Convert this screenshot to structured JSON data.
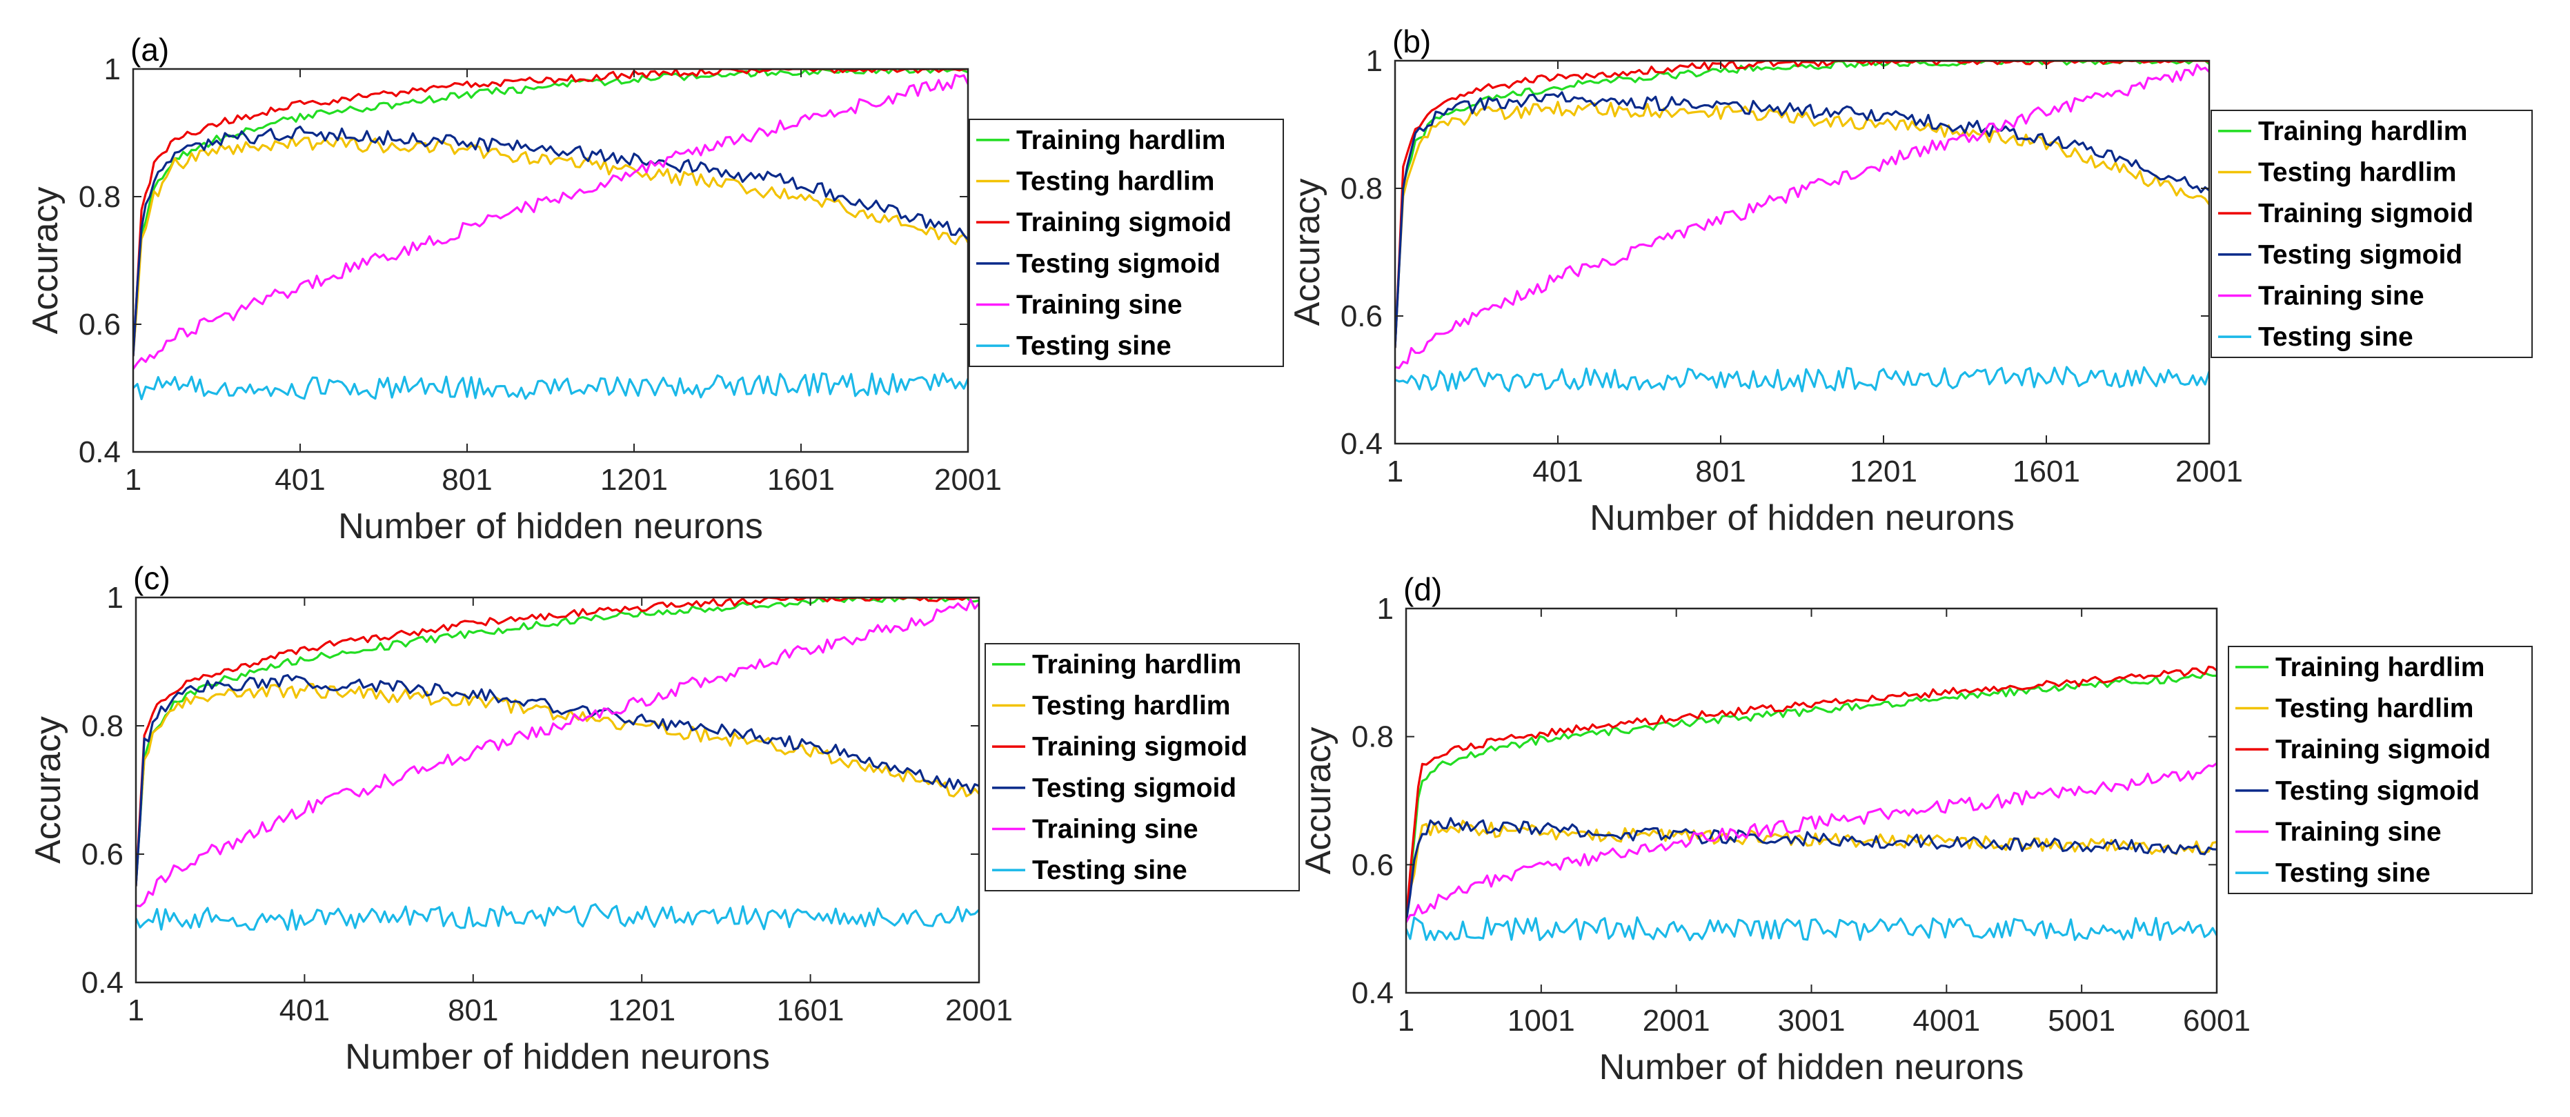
{
  "chart_data": [
    {
      "type": "line",
      "panel_label": "(a)",
      "xlabel": "Number of hidden neurons",
      "ylabel": "Accuracy",
      "xlim": [
        1,
        2001
      ],
      "ylim": [
        0.4,
        1
      ],
      "xticks": [
        1,
        401,
        801,
        1201,
        1601,
        2001
      ],
      "xtick_labels": [
        "1",
        "401",
        "801",
        "1201",
        "1601",
        "2001"
      ],
      "yticks": [
        0.4,
        0.6,
        0.8,
        1
      ],
      "ytick_labels": [
        "0.4",
        "0.6",
        "0.8",
        "1"
      ],
      "legend_position": "outside-right",
      "series": [
        {
          "name": "Training hardlim",
          "color": "#22dd22",
          "x": [
            1,
            21,
            51,
            101,
            201,
            401,
            801,
            1201,
            1601,
            2001
          ],
          "values": [
            0.55,
            0.74,
            0.81,
            0.86,
            0.89,
            0.925,
            0.96,
            0.985,
            0.997,
            1.0
          ]
        },
        {
          "name": "Testing hardlim",
          "color": "#f2c200",
          "x": [
            1,
            21,
            51,
            101,
            201,
            401,
            801,
            1201,
            1601,
            2001
          ],
          "values": [
            0.55,
            0.74,
            0.8,
            0.85,
            0.875,
            0.885,
            0.875,
            0.84,
            0.8,
            0.73
          ]
        },
        {
          "name": "Training sigmoid",
          "color": "#ee0000",
          "x": [
            1,
            21,
            51,
            101,
            201,
            401,
            801,
            1201,
            1601,
            2001
          ],
          "values": [
            0.55,
            0.78,
            0.85,
            0.89,
            0.915,
            0.945,
            0.975,
            0.992,
            1.0,
            1.0
          ]
        },
        {
          "name": "Testing sigmoid",
          "color": "#0a2a8a",
          "x": [
            1,
            21,
            51,
            101,
            201,
            401,
            801,
            1201,
            1601,
            2001
          ],
          "values": [
            0.55,
            0.76,
            0.83,
            0.87,
            0.89,
            0.9,
            0.885,
            0.86,
            0.82,
            0.74
          ]
        },
        {
          "name": "Training sine",
          "color": "#ff1aff",
          "x": [
            1,
            101,
            401,
            801,
            1201,
            1601,
            2001
          ],
          "values": [
            0.53,
            0.58,
            0.66,
            0.75,
            0.84,
            0.92,
            0.985
          ]
        },
        {
          "name": "Testing sine",
          "color": "#1ab8e8",
          "x": [
            1,
            501,
            1001,
            1501,
            2001
          ],
          "values": [
            0.5,
            0.5,
            0.5,
            0.505,
            0.505
          ]
        }
      ]
    },
    {
      "type": "line",
      "panel_label": "(b)",
      "xlabel": "Number of hidden neurons",
      "ylabel": "Accuracy",
      "xlim": [
        1,
        2001
      ],
      "ylim": [
        0.4,
        1
      ],
      "xticks": [
        1,
        401,
        801,
        1201,
        1601,
        2001
      ],
      "xtick_labels": [
        "1",
        "401",
        "801",
        "1201",
        "1601",
        "2001"
      ],
      "yticks": [
        0.4,
        0.6,
        0.8,
        1
      ],
      "ytick_labels": [
        "0.4",
        "0.6",
        "0.8",
        "1"
      ],
      "legend_position": "outside-right",
      "series": [
        {
          "name": "Training hardlim",
          "color": "#22dd22",
          "x": [
            1,
            21,
            51,
            101,
            201,
            401,
            801,
            1201,
            1601,
            2001
          ],
          "values": [
            0.55,
            0.8,
            0.87,
            0.91,
            0.935,
            0.96,
            0.985,
            0.997,
            1.0,
            1.0
          ]
        },
        {
          "name": "Testing hardlim",
          "color": "#f2c200",
          "x": [
            1,
            21,
            51,
            101,
            201,
            401,
            801,
            1201,
            1601,
            2001
          ],
          "values": [
            0.55,
            0.79,
            0.86,
            0.9,
            0.915,
            0.925,
            0.92,
            0.9,
            0.87,
            0.78
          ]
        },
        {
          "name": "Training sigmoid",
          "color": "#ee0000",
          "x": [
            1,
            21,
            51,
            101,
            201,
            401,
            801,
            1201,
            1601,
            2001
          ],
          "values": [
            0.55,
            0.83,
            0.89,
            0.93,
            0.955,
            0.975,
            0.993,
            1.0,
            1.0,
            1.0
          ]
        },
        {
          "name": "Testing sigmoid",
          "color": "#0a2a8a",
          "x": [
            1,
            21,
            51,
            101,
            201,
            401,
            801,
            1201,
            1601,
            2001
          ],
          "values": [
            0.55,
            0.81,
            0.88,
            0.915,
            0.93,
            0.94,
            0.93,
            0.915,
            0.88,
            0.8
          ]
        },
        {
          "name": "Training sine",
          "color": "#ff1aff",
          "x": [
            1,
            101,
            401,
            801,
            1201,
            1601,
            2001
          ],
          "values": [
            0.52,
            0.57,
            0.66,
            0.75,
            0.84,
            0.92,
            0.99
          ]
        },
        {
          "name": "Testing sine",
          "color": "#1ab8e8",
          "x": [
            1,
            501,
            1001,
            1501,
            2001
          ],
          "values": [
            0.5,
            0.5,
            0.5,
            0.505,
            0.5
          ]
        }
      ]
    },
    {
      "type": "line",
      "panel_label": "(c)",
      "xlabel": "Number of hidden neurons",
      "ylabel": "Accuracy",
      "xlim": [
        1,
        2001
      ],
      "ylim": [
        0.4,
        1
      ],
      "xticks": [
        1,
        401,
        801,
        1201,
        1601,
        2001
      ],
      "xtick_labels": [
        "1",
        "401",
        "801",
        "1201",
        "1601",
        "2001"
      ],
      "yticks": [
        0.4,
        0.6,
        0.8,
        1
      ],
      "ytick_labels": [
        "0.4",
        "0.6",
        "0.8",
        "1"
      ],
      "legend_position": "outside-right",
      "series": [
        {
          "name": "Training hardlim",
          "color": "#22dd22",
          "x": [
            1,
            21,
            51,
            101,
            201,
            401,
            801,
            1201,
            1601,
            2001
          ],
          "values": [
            0.55,
            0.75,
            0.8,
            0.84,
            0.87,
            0.905,
            0.945,
            0.975,
            0.995,
            1.0
          ]
        },
        {
          "name": "Testing hardlim",
          "color": "#f2c200",
          "x": [
            1,
            21,
            51,
            101,
            201,
            401,
            801,
            1201,
            1601,
            2001
          ],
          "values": [
            0.55,
            0.75,
            0.8,
            0.83,
            0.85,
            0.855,
            0.84,
            0.8,
            0.76,
            0.69
          ]
        },
        {
          "name": "Training sigmoid",
          "color": "#ee0000",
          "x": [
            1,
            21,
            51,
            101,
            201,
            401,
            801,
            1201,
            1601,
            2001
          ],
          "values": [
            0.55,
            0.78,
            0.83,
            0.86,
            0.885,
            0.92,
            0.96,
            0.985,
            1.0,
            1.0
          ]
        },
        {
          "name": "Testing sigmoid",
          "color": "#0a2a8a",
          "x": [
            1,
            21,
            51,
            101,
            201,
            401,
            801,
            1201,
            1601,
            2001
          ],
          "values": [
            0.55,
            0.77,
            0.82,
            0.85,
            0.865,
            0.87,
            0.85,
            0.81,
            0.77,
            0.7
          ]
        },
        {
          "name": "Training sine",
          "color": "#ff1aff",
          "x": [
            1,
            101,
            401,
            801,
            1201,
            1601,
            2001
          ],
          "values": [
            0.52,
            0.58,
            0.67,
            0.76,
            0.84,
            0.92,
            0.99
          ]
        },
        {
          "name": "Testing sine",
          "color": "#1ab8e8",
          "x": [
            1,
            501,
            1001,
            1501,
            2001
          ],
          "values": [
            0.5,
            0.5,
            0.505,
            0.5,
            0.5
          ]
        }
      ]
    },
    {
      "type": "line",
      "panel_label": "(d)",
      "xlabel": "Number of hidden neurons",
      "ylabel": "Accuracy",
      "xlim": [
        1,
        6001
      ],
      "ylim": [
        0.4,
        1
      ],
      "xticks": [
        1,
        1001,
        2001,
        3001,
        4001,
        5001,
        6001
      ],
      "xtick_labels": [
        "1",
        "1001",
        "2001",
        "3001",
        "4001",
        "5001",
        "6001"
      ],
      "yticks": [
        0.4,
        0.6,
        0.8,
        1
      ],
      "ytick_labels": [
        "0.4",
        "0.6",
        "0.8",
        "1"
      ],
      "legend_position": "outside-right",
      "series": [
        {
          "name": "Training hardlim",
          "color": "#22dd22",
          "x": [
            1,
            101,
            301,
            601,
            1001,
            2001,
            3001,
            4001,
            5001,
            6001
          ],
          "values": [
            0.51,
            0.73,
            0.76,
            0.78,
            0.795,
            0.82,
            0.84,
            0.86,
            0.88,
            0.895
          ]
        },
        {
          "name": "Testing hardlim",
          "color": "#f2c200",
          "x": [
            1,
            101,
            301,
            601,
            1001,
            2001,
            3001,
            4001,
            5001,
            6001
          ],
          "values": [
            0.51,
            0.65,
            0.66,
            0.655,
            0.65,
            0.645,
            0.64,
            0.635,
            0.63,
            0.625
          ]
        },
        {
          "name": "Training sigmoid",
          "color": "#ee0000",
          "x": [
            1,
            101,
            301,
            601,
            1001,
            2001,
            3001,
            4001,
            5001,
            6001
          ],
          "values": [
            0.51,
            0.75,
            0.775,
            0.79,
            0.805,
            0.83,
            0.85,
            0.87,
            0.885,
            0.905
          ]
        },
        {
          "name": "Testing sigmoid",
          "color": "#0a2a8a",
          "x": [
            1,
            101,
            301,
            601,
            1001,
            2001,
            3001,
            4001,
            5001,
            6001
          ],
          "values": [
            0.51,
            0.655,
            0.665,
            0.66,
            0.655,
            0.645,
            0.64,
            0.635,
            0.63,
            0.625
          ]
        },
        {
          "name": "Training sine",
          "color": "#ff1aff",
          "x": [
            1,
            101,
            501,
            1001,
            2001,
            3001,
            4001,
            5001,
            6001
          ],
          "values": [
            0.51,
            0.53,
            0.57,
            0.595,
            0.635,
            0.665,
            0.69,
            0.715,
            0.75
          ]
        },
        {
          "name": "Testing sine",
          "color": "#1ab8e8",
          "x": [
            1,
            1001,
            2001,
            3001,
            4001,
            5001,
            6001
          ],
          "values": [
            0.5,
            0.5,
            0.5,
            0.5,
            0.5,
            0.5,
            0.5
          ]
        }
      ]
    }
  ]
}
